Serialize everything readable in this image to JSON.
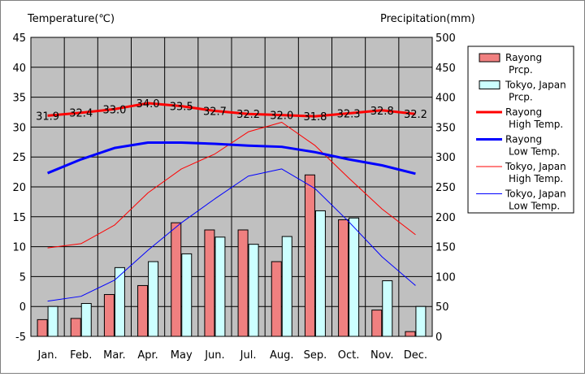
{
  "chart_data": {
    "type": "bar+line",
    "left_axis_title": "Temperature(℃)",
    "right_axis_title": "Precipitation(mm)",
    "left_axis": {
      "range": [
        -5,
        45
      ],
      "step": 5
    },
    "right_axis": {
      "range": [
        0,
        500
      ],
      "step": 50
    },
    "grid": true,
    "legend_position": "right",
    "categories": [
      "Jan.",
      "Feb.",
      "Mar.",
      "Apr.",
      "May",
      "Jun.",
      "Jul.",
      "Aug.",
      "Sep.",
      "Oct.",
      "Nov.",
      "Dec."
    ],
    "precipitation": [
      {
        "name": "Rayong\nPrcp.",
        "color": "#f08080",
        "values": [
          28,
          30,
          70,
          85,
          190,
          178,
          178,
          125,
          270,
          195,
          44,
          8
        ]
      },
      {
        "name": "Tokyo, Japan\nPrcp.",
        "color": "#ccffff",
        "values": [
          50,
          55,
          115,
          125,
          138,
          166,
          154,
          167,
          210,
          198,
          93,
          50
        ]
      }
    ],
    "temperature": [
      {
        "name": "Rayong\nHigh Temp.",
        "color": "#ff0000",
        "width": 3,
        "values": [
          31.9,
          32.4,
          33.0,
          34.0,
          33.5,
          32.7,
          32.2,
          32.0,
          31.8,
          32.3,
          32.8,
          32.2
        ],
        "labels": [
          "31.9",
          "32.4",
          "33.0",
          "34.0",
          "33.5",
          "32.7",
          "32.2",
          "32.0",
          "31.8",
          "32.3",
          "32.8",
          "32.2"
        ]
      },
      {
        "name": "Rayong\nLow Temp.",
        "color": "#0000ff",
        "width": 3,
        "values": [
          22.3,
          24.6,
          26.5,
          27.4,
          27.4,
          27.2,
          26.9,
          26.7,
          25.8,
          24.6,
          23.6,
          22.2
        ]
      },
      {
        "name": "Tokyo, Japan\nHigh Temp.",
        "color": "#ff0000",
        "width": 1,
        "values": [
          9.8,
          10.5,
          13.6,
          19.0,
          23.0,
          25.5,
          29.2,
          30.8,
          26.9,
          21.5,
          16.3,
          12.0
        ]
      },
      {
        "name": "Tokyo, Japan\nLow Temp.",
        "color": "#0000ff",
        "width": 1,
        "values": [
          0.9,
          1.7,
          4.4,
          9.4,
          14.0,
          18.0,
          21.8,
          23.0,
          19.7,
          14.2,
          8.3,
          3.5
        ]
      }
    ]
  }
}
